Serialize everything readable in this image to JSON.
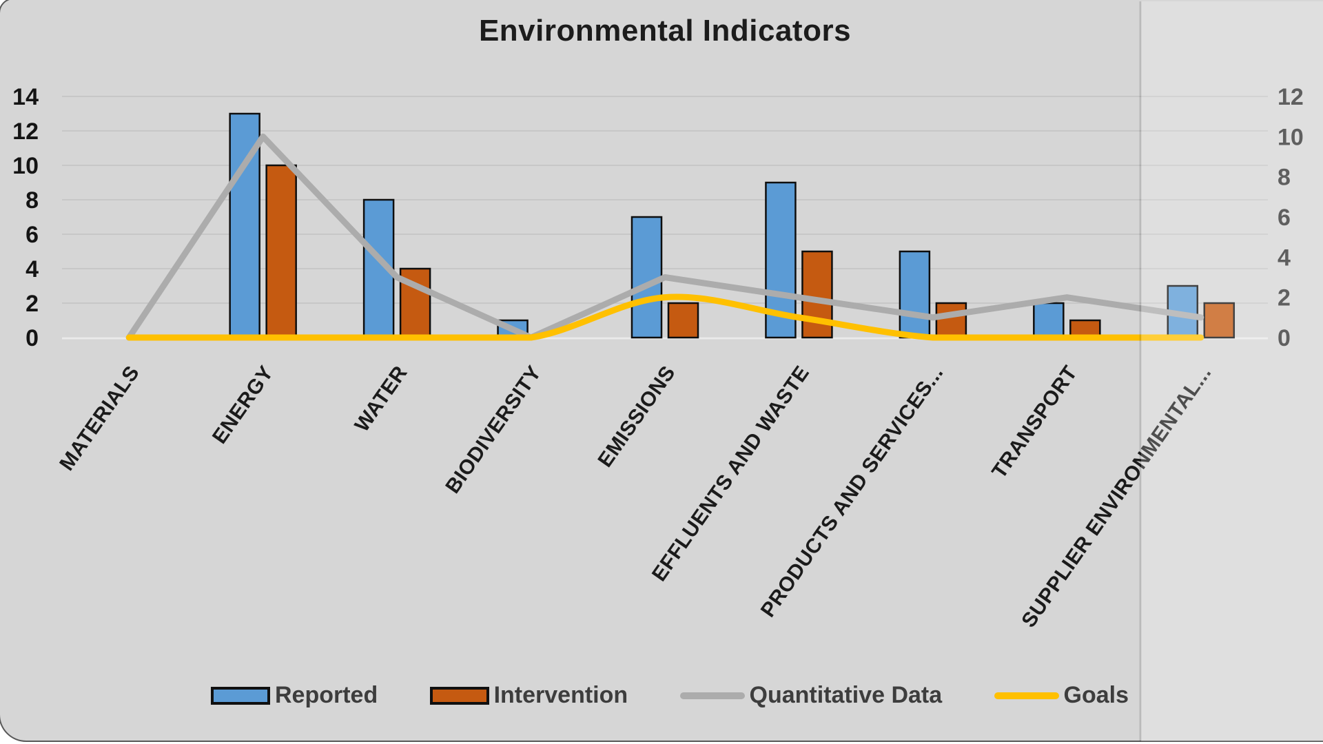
{
  "chart_data": {
    "type": "combo",
    "title": "Environmental Indicators",
    "categories": [
      "MATERIALS",
      "ENERGY",
      "WATER",
      "BIODIVERSITY",
      "EMISSIONS",
      "EFFLUENTS AND WASTE",
      "PRODUCTS AND SERVICES...",
      "TRANSPORT",
      "SUPPLIER ENVIRONMENTAL..."
    ],
    "series": [
      {
        "name": "Reported",
        "type": "bar",
        "axis": "primary",
        "color": "#5B9BD5",
        "values": [
          0,
          13,
          8,
          1,
          7,
          9,
          5,
          2,
          3
        ]
      },
      {
        "name": "Intervention",
        "type": "bar",
        "axis": "primary",
        "color": "#C55A11",
        "values": [
          0,
          10,
          4,
          0,
          2,
          5,
          2,
          1,
          2
        ]
      },
      {
        "name": "Quantitative Data",
        "type": "line",
        "axis": "secondary",
        "color": "#ACACAC",
        "values": [
          0,
          10,
          3,
          0,
          3,
          2,
          1,
          2,
          1
        ],
        "smooth": false
      },
      {
        "name": "Goals",
        "type": "line",
        "axis": "secondary",
        "color": "#FFC000",
        "values": [
          0,
          0,
          0,
          0,
          2,
          1,
          0,
          0,
          0
        ],
        "smooth": true
      }
    ],
    "primary_axis": {
      "side": "left",
      "min": 0,
      "max": 14,
      "step": 2,
      "ticks": [
        14,
        12,
        10,
        8,
        6,
        4,
        2,
        0
      ]
    },
    "secondary_axis": {
      "side": "right",
      "min": 0,
      "max": 12,
      "step": 2,
      "ticks": [
        12,
        10,
        8,
        6,
        4,
        2,
        0
      ]
    },
    "grid": true,
    "legend_position": "bottom"
  }
}
